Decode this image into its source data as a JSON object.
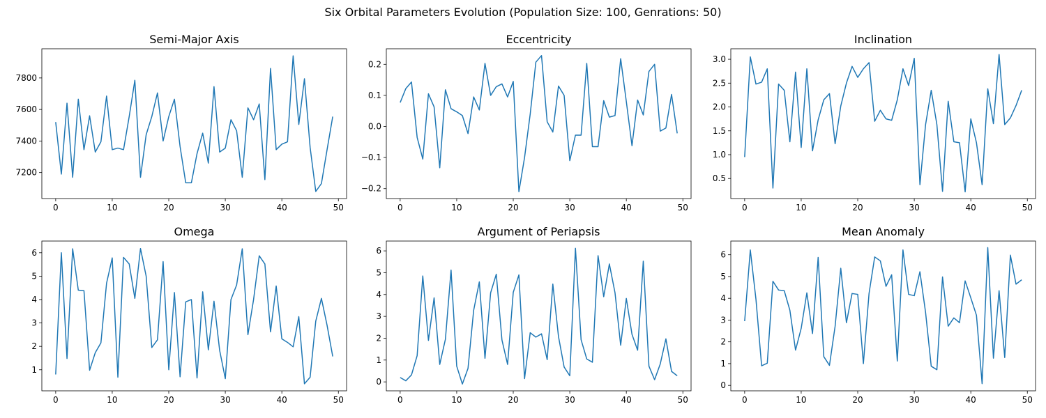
{
  "figure": {
    "title": "Six Orbital Parameters Evolution (Population Size: 100, Genrations: 50)"
  },
  "line_color": "#1f77b4",
  "chart_data": [
    {
      "type": "line",
      "title": "Semi-Major Axis",
      "xlabel": "",
      "ylabel": "",
      "xlim": [
        -2.45,
        51.45
      ],
      "ylim": [
        7035,
        7985
      ],
      "xticks": [
        0,
        10,
        20,
        30,
        40,
        50
      ],
      "yticks": [
        7200,
        7400,
        7600,
        7800
      ],
      "grid": false,
      "x": [
        0,
        1,
        2,
        3,
        4,
        5,
        6,
        7,
        8,
        9,
        10,
        11,
        12,
        13,
        14,
        15,
        16,
        17,
        18,
        19,
        20,
        21,
        22,
        23,
        24,
        25,
        26,
        27,
        28,
        29,
        30,
        31,
        32,
        33,
        34,
        35,
        36,
        37,
        38,
        39,
        40,
        41,
        42,
        43,
        44,
        45,
        46,
        47,
        48,
        49
      ],
      "values": [
        7520,
        7190,
        7640,
        7170,
        7665,
        7345,
        7560,
        7330,
        7395,
        7685,
        7345,
        7355,
        7345,
        7555,
        7785,
        7170,
        7440,
        7555,
        7705,
        7400,
        7555,
        7665,
        7365,
        7135,
        7135,
        7320,
        7450,
        7260,
        7745,
        7330,
        7355,
        7535,
        7465,
        7170,
        7610,
        7535,
        7635,
        7155,
        7860,
        7345,
        7380,
        7395,
        7940,
        7505,
        7795,
        7360,
        7080,
        7130,
        7345,
        7555
      ]
    },
    {
      "type": "line",
      "title": "Eccentricity",
      "xlabel": "",
      "ylabel": "",
      "xlim": [
        -2.45,
        51.45
      ],
      "ylim": [
        -0.232,
        0.25
      ],
      "xticks": [
        0,
        10,
        20,
        30,
        40,
        50
      ],
      "yticks": [
        -0.2,
        -0.1,
        0.0,
        0.1,
        0.2
      ],
      "ytick_labels": [
        "−0.2",
        "−0.1",
        "0.0",
        "0.1",
        "0.2"
      ],
      "grid": false,
      "x": [
        0,
        1,
        2,
        3,
        4,
        5,
        6,
        7,
        8,
        9,
        10,
        11,
        12,
        13,
        14,
        15,
        16,
        17,
        18,
        19,
        20,
        21,
        22,
        23,
        24,
        25,
        26,
        27,
        28,
        29,
        30,
        31,
        32,
        33,
        34,
        35,
        36,
        37,
        38,
        39,
        40,
        41,
        42,
        43,
        44,
        45,
        46,
        47,
        48,
        49
      ],
      "values": [
        0.077,
        0.122,
        0.143,
        -0.035,
        -0.105,
        0.105,
        0.063,
        -0.133,
        0.118,
        0.057,
        0.047,
        0.035,
        -0.023,
        0.095,
        0.053,
        0.203,
        0.1,
        0.128,
        0.137,
        0.095,
        0.145,
        -0.21,
        -0.1,
        0.04,
        0.207,
        0.228,
        0.015,
        -0.018,
        0.13,
        0.1,
        -0.11,
        -0.028,
        -0.028,
        0.203,
        -0.065,
        -0.065,
        0.083,
        0.03,
        0.035,
        0.218,
        0.08,
        -0.062,
        0.085,
        0.037,
        0.177,
        0.2,
        -0.015,
        -0.005,
        0.103,
        -0.022
      ]
    },
    {
      "type": "line",
      "title": "Inclination",
      "xlabel": "",
      "ylabel": "",
      "xlim": [
        -2.45,
        51.45
      ],
      "ylim": [
        0.08,
        3.22
      ],
      "xticks": [
        0,
        10,
        20,
        30,
        40,
        50
      ],
      "yticks": [
        0.5,
        1.0,
        1.5,
        2.0,
        2.5,
        3.0
      ],
      "grid": false,
      "x": [
        0,
        1,
        2,
        3,
        4,
        5,
        6,
        7,
        8,
        9,
        10,
        11,
        12,
        13,
        14,
        15,
        16,
        17,
        18,
        19,
        20,
        21,
        22,
        23,
        24,
        25,
        26,
        27,
        28,
        29,
        30,
        31,
        32,
        33,
        34,
        35,
        36,
        37,
        38,
        39,
        40,
        41,
        42,
        43,
        44,
        45,
        46,
        47,
        48,
        49
      ],
      "values": [
        0.95,
        3.05,
        2.48,
        2.52,
        2.8,
        0.3,
        2.48,
        2.35,
        1.27,
        2.73,
        1.15,
        2.8,
        1.08,
        1.73,
        2.15,
        2.28,
        1.23,
        2.02,
        2.5,
        2.85,
        2.62,
        2.8,
        2.93,
        1.7,
        1.93,
        1.75,
        1.72,
        2.15,
        2.8,
        2.45,
        3.02,
        0.37,
        1.63,
        2.35,
        1.63,
        0.23,
        2.12,
        1.27,
        1.25,
        0.22,
        1.75,
        1.25,
        0.37,
        2.38,
        1.65,
        3.1,
        1.63,
        1.77,
        2.03,
        2.35
      ]
    },
    {
      "type": "line",
      "title": "Omega",
      "xlabel": "",
      "ylabel": "",
      "xlim": [
        -2.45,
        51.45
      ],
      "ylim": [
        0.1,
        6.5
      ],
      "xticks": [
        0,
        10,
        20,
        30,
        40,
        50
      ],
      "yticks": [
        1,
        2,
        3,
        4,
        5,
        6
      ],
      "grid": false,
      "x": [
        0,
        1,
        2,
        3,
        4,
        5,
        6,
        7,
        8,
        9,
        10,
        11,
        12,
        13,
        14,
        15,
        16,
        17,
        18,
        19,
        20,
        21,
        22,
        23,
        24,
        25,
        26,
        27,
        28,
        29,
        30,
        31,
        32,
        33,
        34,
        35,
        36,
        37,
        38,
        39,
        40,
        41,
        42,
        43,
        44,
        45,
        46,
        47,
        48,
        49
      ],
      "values": [
        0.8,
        6.0,
        1.48,
        6.17,
        4.4,
        4.38,
        0.98,
        1.73,
        2.15,
        4.7,
        5.78,
        0.68,
        5.8,
        5.52,
        4.05,
        6.18,
        5.0,
        1.95,
        2.28,
        5.62,
        1.0,
        4.3,
        0.7,
        3.9,
        4.0,
        0.65,
        4.33,
        1.85,
        3.93,
        1.83,
        0.62,
        4.0,
        4.62,
        6.17,
        2.5,
        4.0,
        5.87,
        5.52,
        2.62,
        4.58,
        2.32,
        2.17,
        1.98,
        3.27,
        0.4,
        0.68,
        3.08,
        4.05,
        2.9,
        1.57
      ]
    },
    {
      "type": "line",
      "title": "Argument of Periapsis",
      "xlabel": "",
      "ylabel": "",
      "xlim": [
        -2.45,
        51.45
      ],
      "ylim": [
        -0.41,
        6.45
      ],
      "xticks": [
        0,
        10,
        20,
        30,
        40,
        50
      ],
      "yticks": [
        0,
        1,
        2,
        3,
        4,
        5,
        6
      ],
      "grid": false,
      "x": [
        0,
        1,
        2,
        3,
        4,
        5,
        6,
        7,
        8,
        9,
        10,
        11,
        12,
        13,
        14,
        15,
        16,
        17,
        18,
        19,
        20,
        21,
        22,
        23,
        24,
        25,
        26,
        27,
        28,
        29,
        30,
        31,
        32,
        33,
        34,
        35,
        36,
        37,
        38,
        39,
        40,
        41,
        42,
        43,
        44,
        45,
        46,
        47,
        48,
        49
      ],
      "values": [
        0.2,
        0.05,
        0.32,
        1.2,
        4.85,
        1.9,
        3.85,
        0.8,
        1.95,
        5.12,
        0.72,
        -0.1,
        0.62,
        3.28,
        4.58,
        1.08,
        4.08,
        4.93,
        1.92,
        0.8,
        4.1,
        4.9,
        0.15,
        2.25,
        2.05,
        2.2,
        1.02,
        4.48,
        2.08,
        0.68,
        0.28,
        6.12,
        1.93,
        1.05,
        0.9,
        5.78,
        3.9,
        5.4,
        4.08,
        1.68,
        3.82,
        2.18,
        1.45,
        5.53,
        0.72,
        0.1,
        0.82,
        1.97,
        0.48,
        0.28
      ]
    },
    {
      "type": "line",
      "title": "Mean Anomaly",
      "xlabel": "",
      "ylabel": "",
      "xlim": [
        -2.45,
        51.45
      ],
      "ylim": [
        -0.25,
        6.63
      ],
      "xticks": [
        0,
        10,
        20,
        30,
        40,
        50
      ],
      "yticks": [
        0,
        1,
        2,
        3,
        4,
        5,
        6
      ],
      "grid": false,
      "x": [
        0,
        1,
        2,
        3,
        4,
        5,
        6,
        7,
        8,
        9,
        10,
        11,
        12,
        13,
        14,
        15,
        16,
        17,
        18,
        19,
        20,
        21,
        22,
        23,
        24,
        25,
        26,
        27,
        28,
        29,
        30,
        31,
        32,
        33,
        34,
        35,
        36,
        37,
        38,
        39,
        40,
        41,
        42,
        43,
        44,
        45,
        46,
        47,
        48,
        49
      ],
      "values": [
        2.95,
        6.22,
        3.95,
        0.9,
        1.02,
        4.78,
        4.38,
        4.35,
        3.45,
        1.62,
        2.62,
        4.25,
        2.38,
        5.88,
        1.32,
        0.92,
        2.72,
        5.38,
        2.88,
        4.22,
        4.18,
        1.0,
        4.22,
        5.9,
        5.72,
        4.55,
        5.08,
        1.12,
        6.22,
        4.18,
        4.12,
        5.22,
        3.35,
        0.88,
        0.72,
        4.98,
        2.72,
        3.1,
        2.88,
        4.8,
        4.02,
        3.22,
        0.08,
        6.33,
        1.25,
        4.35,
        1.28,
        5.98,
        4.65,
        4.85
      ]
    }
  ]
}
